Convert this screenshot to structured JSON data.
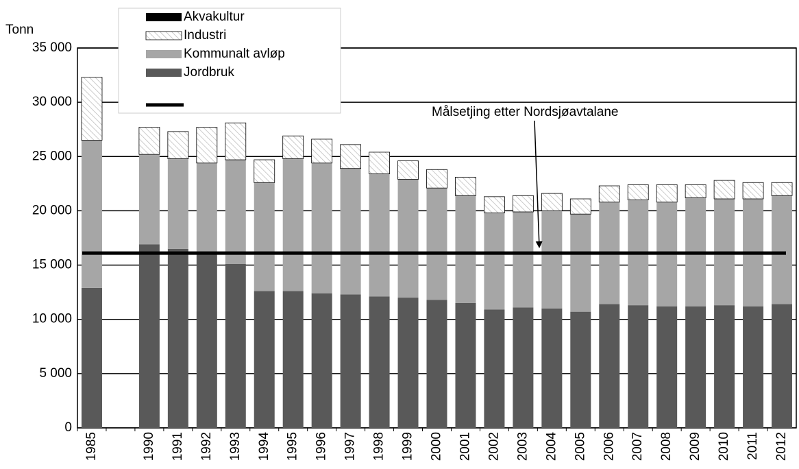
{
  "chart_data": {
    "type": "stacked_bar",
    "y_label": "Tonn",
    "categories": [
      "1985",
      null,
      "1990",
      "1991",
      "1992",
      "1993",
      "1994",
      "1995",
      "1996",
      "1997",
      "1998",
      "1999",
      "2000",
      "2001",
      "2002",
      "2003",
      "2004",
      "2005",
      "2006",
      "2007",
      "2008",
      "2009",
      "2010",
      "2011",
      "2012"
    ],
    "series": [
      {
        "name": "Jordbruk",
        "color": "#595959",
        "values": [
          12900,
          null,
          16900,
          16500,
          16200,
          15100,
          12600,
          12600,
          12400,
          12300,
          12100,
          12000,
          11800,
          11500,
          10900,
          11100,
          11000,
          10700,
          11400,
          11300,
          11200,
          11200,
          11300,
          11200,
          11400
        ]
      },
      {
        "name": "Kommunalt avløp",
        "color": "#a6a6a6",
        "values": [
          13600,
          null,
          8300,
          8300,
          8200,
          9600,
          10000,
          12200,
          12000,
          11600,
          11300,
          10900,
          10300,
          9900,
          8900,
          8800,
          9000,
          9000,
          9400,
          9700,
          9600,
          10000,
          9800,
          9900,
          10000
        ]
      },
      {
        "name": "Industri",
        "color": "#ffffff",
        "pattern": "hatch",
        "values": [
          5800,
          null,
          2500,
          2500,
          3300,
          3400,
          2100,
          2100,
          2200,
          2200,
          2000,
          1700,
          1700,
          1700,
          1500,
          1500,
          1600,
          1400,
          1500,
          1400,
          1600,
          1200,
          1700,
          1500,
          1200
        ]
      },
      {
        "name": "Akvakultur",
        "color": "#000000",
        "values": [
          0,
          null,
          0,
          0,
          0,
          0,
          0,
          0,
          0,
          0,
          0,
          0,
          0,
          0,
          0,
          0,
          0,
          0,
          0,
          0,
          0,
          0,
          0,
          0,
          0
        ]
      }
    ],
    "target": {
      "value": 16100,
      "color": "#000000",
      "annotation": "Målsetjing etter Nordsjøavtalane"
    },
    "ylim": [
      0,
      35000
    ],
    "yticks": [
      0,
      {
        "value": 5000,
        "label": "5 000"
      },
      {
        "value": 10000,
        "label": "10 000"
      },
      {
        "value": 15000,
        "label": "15 000"
      },
      {
        "value": 20000,
        "label": "20 000"
      },
      {
        "value": 25000,
        "label": "25 000"
      },
      {
        "value": 30000,
        "label": "30 000"
      },
      {
        "value": 35000,
        "label": "35 000"
      }
    ],
    "grid": true
  }
}
